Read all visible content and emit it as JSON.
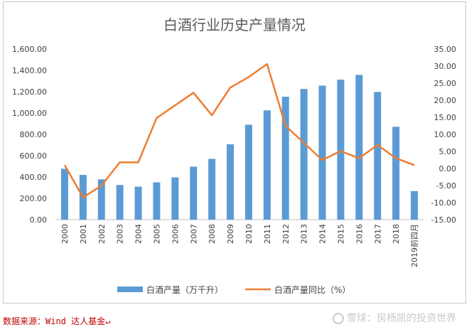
{
  "chart_data": {
    "type": "bar+line",
    "title": "白酒行业历史产量情况",
    "categories": [
      "2000",
      "2001",
      "2002",
      "2003",
      "2004",
      "2005",
      "2006",
      "2007",
      "2008",
      "2009",
      "2010",
      "2011",
      "2012",
      "2013",
      "2014",
      "2015",
      "2016",
      "2017",
      "2018",
      "2019前四月"
    ],
    "series": [
      {
        "name": "白酒产量（万千升）",
        "type": "bar",
        "axis": "left",
        "color": "#5b9bd5",
        "values": [
          477,
          420,
          378,
          325,
          310,
          350,
          397,
          497,
          570,
          707,
          890,
          1025,
          1153,
          1226,
          1257,
          1313,
          1358,
          1198,
          871,
          268
        ]
      },
      {
        "name": "白酒产量同比（%）",
        "type": "line",
        "axis": "right",
        "color": "#ed7d31",
        "values": [
          1.0,
          -8.5,
          -5.0,
          1.8,
          1.8,
          14.8,
          18.5,
          22.2,
          15.6,
          23.7,
          26.8,
          30.6,
          12.5,
          7.5,
          2.5,
          5.1,
          3.0,
          6.9,
          3.0,
          1.0
        ]
      }
    ],
    "yleft": {
      "min": 0,
      "max": 1600,
      "step": 200,
      "tick_labels": [
        "0.00",
        "200.00",
        "400.00",
        "600.00",
        "800.00",
        "1,000.00",
        "1,200.00",
        "1,400.00",
        "1,600.00"
      ]
    },
    "yright": {
      "min": -15,
      "max": 35,
      "step": 5,
      "tick_labels": [
        "-15.00",
        "-10.00",
        "-5.00",
        "0.00",
        "5.00",
        "10.00",
        "15.00",
        "20.00",
        "25.00",
        "30.00",
        "35.00"
      ]
    },
    "legend_position": "bottom-center",
    "grid": false
  },
  "footer": {
    "source": "数据来源：Wind 达人基金↵",
    "watermark": "雪球：房杨凯的投资世界"
  },
  "colors": {
    "bar": "#5b9bd5",
    "line": "#ed7d31",
    "source_text": "#c00000"
  }
}
